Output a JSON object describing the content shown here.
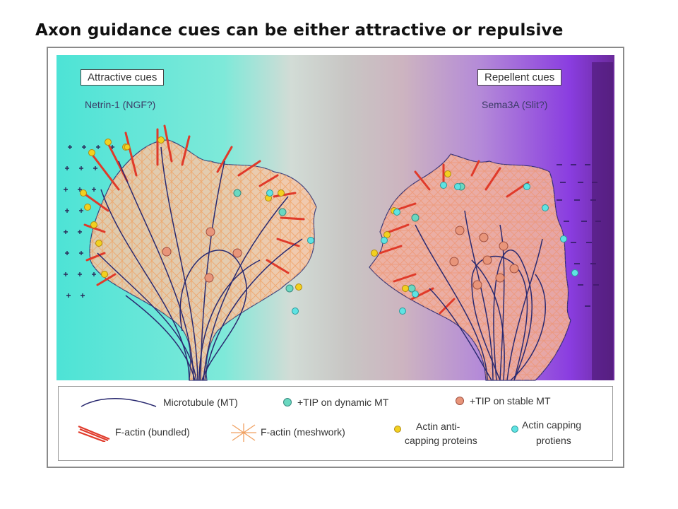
{
  "title": "Axon guidance cues can be either attractive or repulsive",
  "attractive": {
    "box_label": "Attractive cues",
    "cue": "Netrin-1 (NGF?)"
  },
  "repellent": {
    "box_label": "Repellent cues",
    "cue": "Sema3A (Slit?)"
  },
  "legend": {
    "microtubule": "Microtubule (MT)",
    "tip_dynamic": "+TIP on dynamic MT",
    "tip_stable": "+TIP on stable MT",
    "factin_bundled": "F-actin (bundled)",
    "factin_meshwork": "F-actin (meshwork)",
    "anti_capping_1": "Actin anti-",
    "anti_capping_2": "capping proteins",
    "capping_1": "Actin capping",
    "capping_2": "protiens"
  },
  "colors": {
    "attractive_bg": "#4de3d6",
    "repellent_bg": "#8a3de0",
    "microtubule": "#2a2a70",
    "bundled_actin": "#e03a2a",
    "meshwork": "#f0a060",
    "anti_capping": "#f2d020",
    "capping": "#5fe3e3",
    "stable_tip": "#e8957a"
  },
  "icons": [
    "microtubule-icon",
    "tip-dynamic-icon",
    "tip-stable-icon",
    "bundled-actin-icon",
    "meshwork-icon",
    "anti-capping-icon",
    "capping-icon"
  ]
}
